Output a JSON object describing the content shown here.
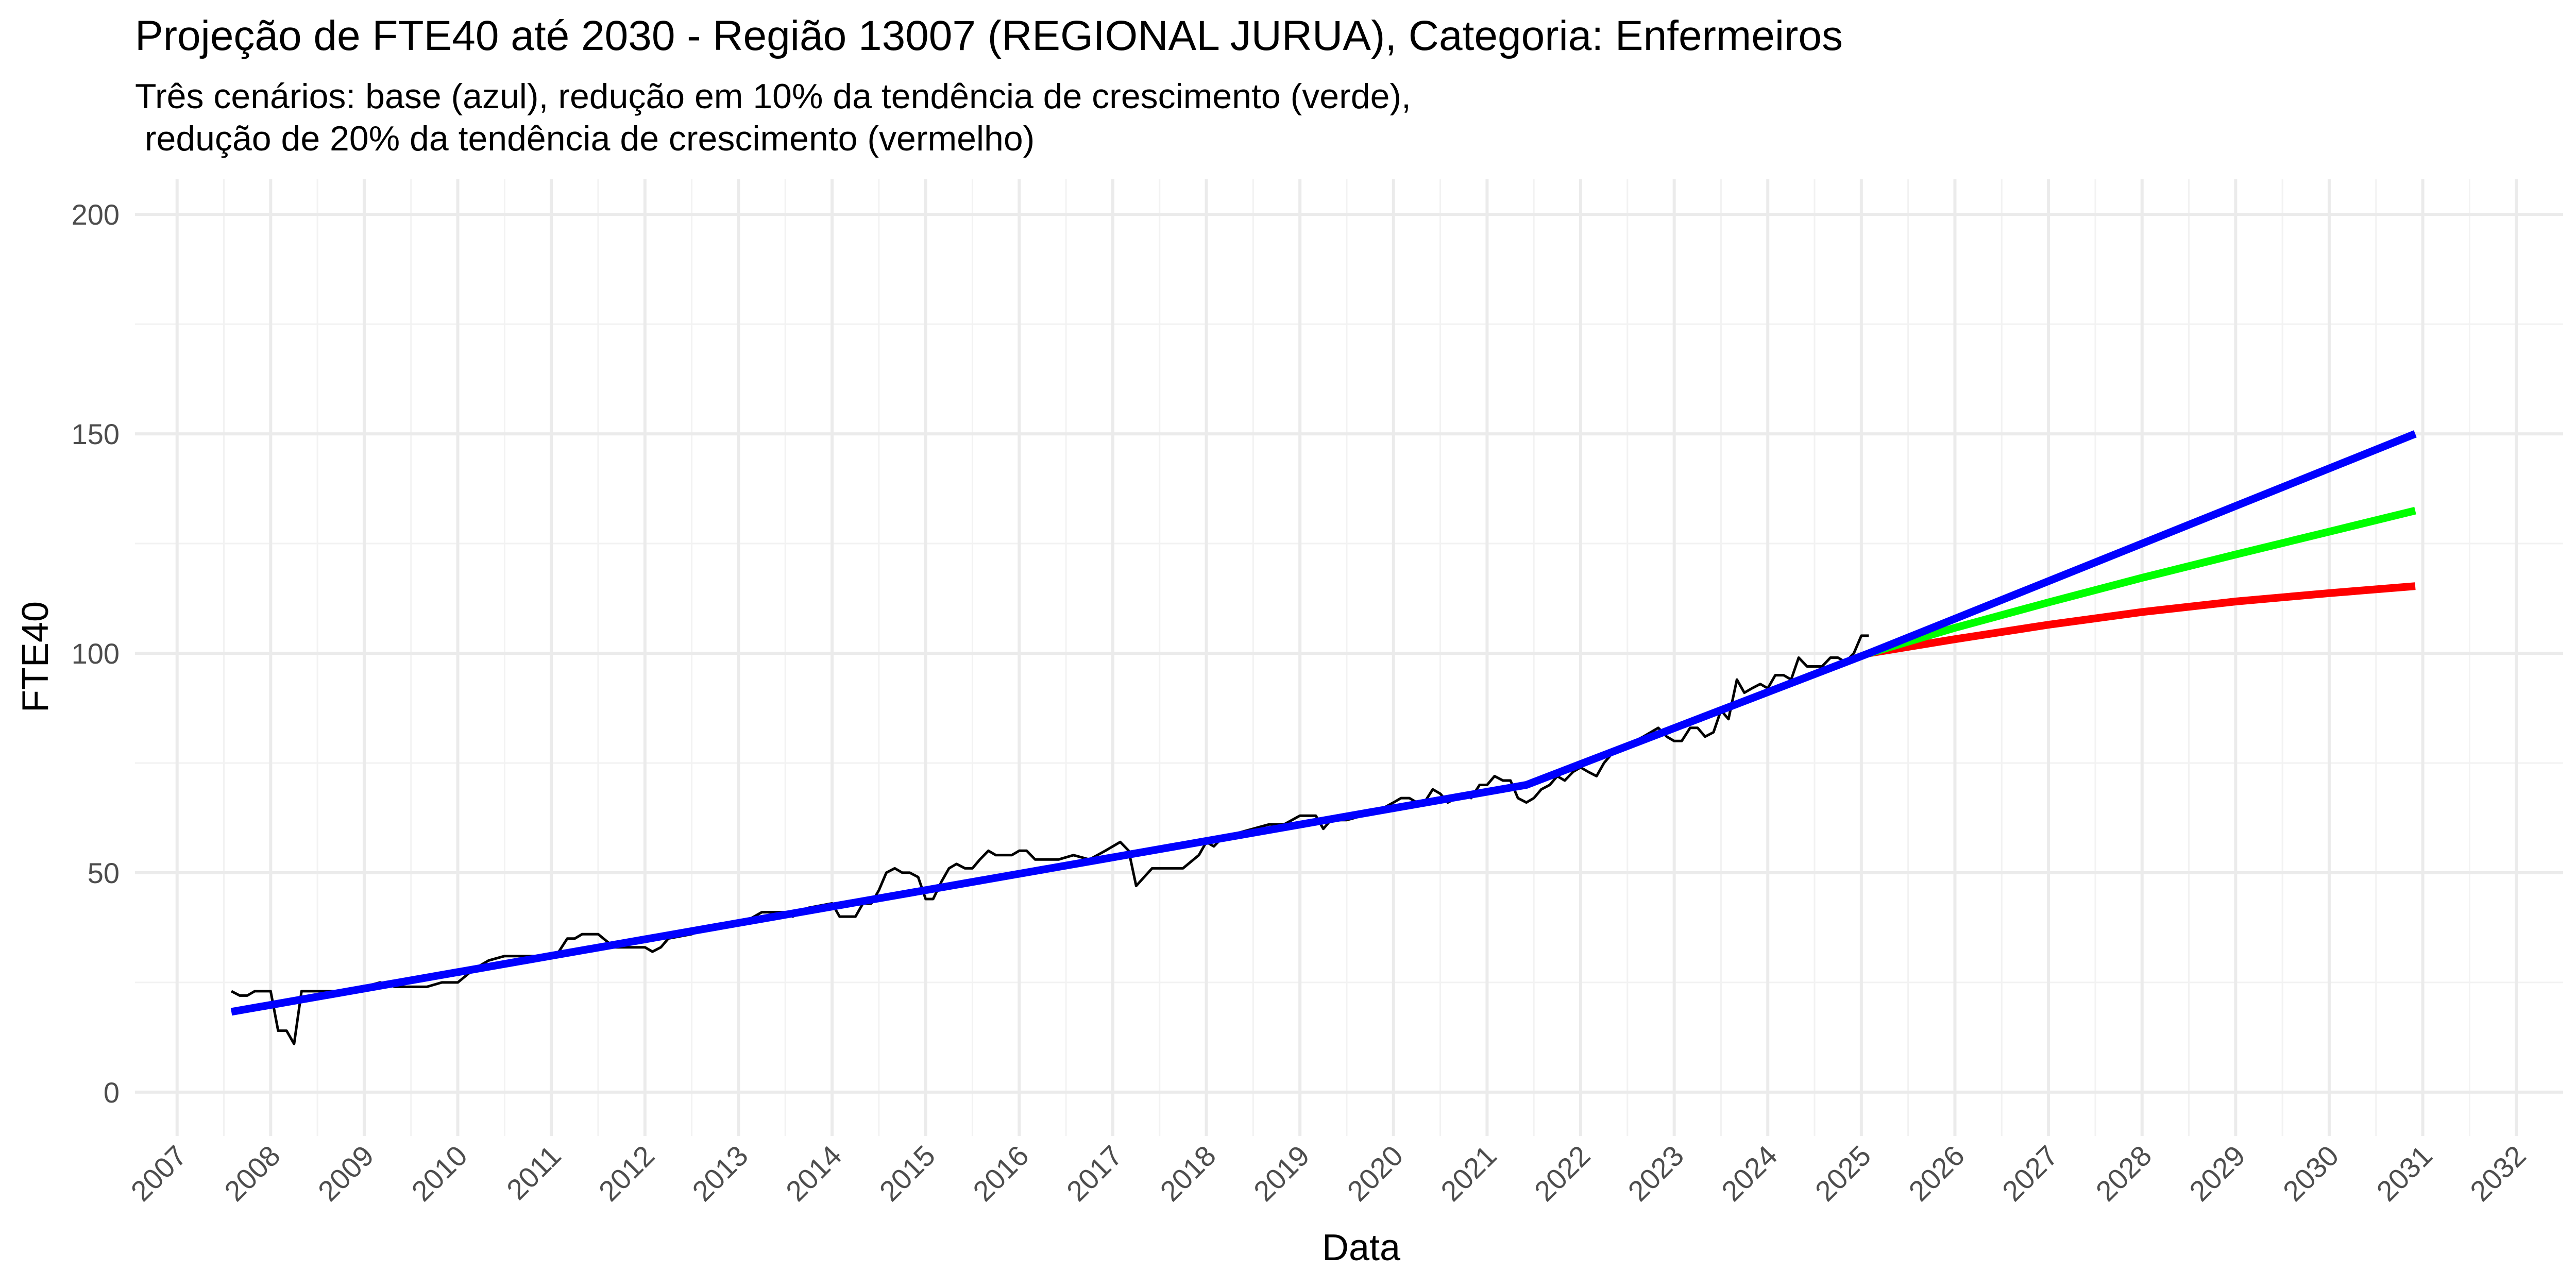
{
  "chart_data": {
    "type": "line",
    "title": "Projeção de FTE40 até 2030 - Região 13007 (REGIONAL JURUA), Categoria: Enfermeiros",
    "subtitle_lines": [
      "Três cenários: base (azul), redução em 10% da tendência de crescimento (verde),",
      " redução de 20% da tendência de crescimento (vermelho)"
    ],
    "xlabel": "Data",
    "ylabel": "FTE40",
    "xlim": [
      2006.55,
      2032.5
    ],
    "ylim": [
      -10,
      208
    ],
    "y_ticks": [
      0,
      50,
      100,
      150,
      200
    ],
    "y_tick_labels": [
      "0",
      "50",
      "100",
      "150",
      "200"
    ],
    "x_ticks": [
      2007,
      2008,
      2009,
      2010,
      2011,
      2012,
      2013,
      2014,
      2015,
      2016,
      2017,
      2018,
      2019,
      2020,
      2021,
      2022,
      2023,
      2024,
      2025,
      2026,
      2027,
      2028,
      2029,
      2030,
      2031,
      2032
    ],
    "x_tick_labels": [
      "2007",
      "2008",
      "2009",
      "2010",
      "2011",
      "2012",
      "2013",
      "2014",
      "2015",
      "2016",
      "2017",
      "2018",
      "2019",
      "2020",
      "2021",
      "2022",
      "2023",
      "2024",
      "2025",
      "2026",
      "2027",
      "2028",
      "2029",
      "2030",
      "2031",
      "2032"
    ],
    "grid": true,
    "series": [
      {
        "key": "observed",
        "color": "#000000",
        "x": [
          2007.58,
          2007.67,
          2007.75,
          2007.83,
          2007.92,
          2008.0,
          2008.08,
          2008.17,
          2008.25,
          2008.33,
          2008.42,
          2008.5,
          2008.58,
          2008.67,
          2008.75,
          2008.83,
          2008.92,
          2009.0,
          2009.17,
          2009.33,
          2009.5,
          2009.67,
          2009.83,
          2010.0,
          2010.17,
          2010.25,
          2010.33,
          2010.5,
          2010.67,
          2010.83,
          2011.0,
          2011.08,
          2011.17,
          2011.25,
          2011.33,
          2011.42,
          2011.5,
          2011.67,
          2011.83,
          2012.0,
          2012.08,
          2012.17,
          2012.25,
          2012.5,
          2012.75,
          2013.0,
          2013.25,
          2013.5,
          2013.58,
          2013.75,
          2014.0,
          2014.08,
          2014.25,
          2014.33,
          2014.42,
          2014.5,
          2014.58,
          2014.67,
          2014.75,
          2014.83,
          2014.92,
          2015.0,
          2015.08,
          2015.17,
          2015.25,
          2015.33,
          2015.42,
          2015.5,
          2015.58,
          2015.67,
          2015.75,
          2015.83,
          2015.92,
          2016.0,
          2016.08,
          2016.17,
          2016.25,
          2016.42,
          2016.58,
          2016.75,
          2016.92,
          2017.0,
          2017.08,
          2017.17,
          2017.25,
          2017.42,
          2017.58,
          2017.75,
          2017.92,
          2018.0,
          2018.08,
          2018.17,
          2018.33,
          2018.5,
          2018.67,
          2018.83,
          2019.0,
          2019.17,
          2019.25,
          2019.33,
          2019.5,
          2019.67,
          2019.83,
          2020.0,
          2020.08,
          2020.17,
          2020.25,
          2020.33,
          2020.42,
          2020.5,
          2020.58,
          2020.67,
          2020.75,
          2020.83,
          2020.92,
          2021.0,
          2021.08,
          2021.17,
          2021.25,
          2021.33,
          2021.42,
          2021.5,
          2021.58,
          2021.67,
          2021.75,
          2021.83,
          2021.92,
          2022.0,
          2022.08,
          2022.17,
          2022.25,
          2022.33,
          2022.42,
          2022.5,
          2022.58,
          2022.67,
          2022.75,
          2022.83,
          2022.92,
          2023.0,
          2023.08,
          2023.17,
          2023.25,
          2023.33,
          2023.42,
          2023.5,
          2023.58,
          2023.67,
          2023.75,
          2023.83,
          2023.92,
          2024.0,
          2024.08,
          2024.17,
          2024.25,
          2024.33,
          2024.42,
          2024.5,
          2024.58,
          2024.67,
          2024.75,
          2024.83,
          2024.92,
          2025.0,
          2025.08
        ],
        "values": [
          23,
          22,
          22,
          23,
          23,
          23,
          14,
          14,
          11,
          23,
          23,
          23,
          23,
          23,
          23,
          23,
          23,
          24,
          25,
          24,
          24,
          24,
          25,
          25,
          28,
          29,
          30,
          31,
          31,
          31,
          31,
          32,
          35,
          35,
          36,
          36,
          36,
          33,
          33,
          33,
          32,
          33,
          35,
          36,
          38,
          38,
          41,
          41,
          40,
          42,
          43,
          40,
          40,
          43,
          43,
          46,
          50,
          51,
          50,
          50,
          49,
          44,
          44,
          48,
          51,
          52,
          51,
          51,
          53,
          55,
          54,
          54,
          54,
          55,
          55,
          53,
          53,
          53,
          54,
          53,
          55,
          56,
          57,
          55,
          47,
          51,
          51,
          51,
          54,
          57,
          56,
          58,
          59,
          60,
          61,
          61,
          63,
          63,
          60,
          62,
          62,
          63,
          64,
          66,
          67,
          67,
          66,
          66,
          69,
          68,
          66,
          67,
          68,
          67,
          70,
          70,
          72,
          71,
          71,
          67,
          66,
          67,
          69,
          70,
          72,
          71,
          73,
          74,
          73,
          72,
          75,
          77,
          78,
          79,
          80,
          81,
          82,
          83,
          81,
          80,
          80,
          83,
          83,
          81,
          82,
          87,
          85,
          94,
          91,
          92,
          93,
          92,
          95,
          95,
          94,
          99,
          97,
          97,
          97,
          99,
          99,
          98,
          100,
          104,
          104
        ]
      },
      {
        "key": "base",
        "color": "#0000ff",
        "x": [
          2007.58,
          2021.42,
          2025.08,
          2030.92
        ],
        "values": [
          18.3,
          70,
          100,
          150
        ]
      },
      {
        "key": "reduction-10",
        "color": "#00ff00",
        "x": [
          2025.08,
          2026,
          2027,
          2028,
          2029,
          2030,
          2030.92
        ],
        "values": [
          100,
          105.8,
          111.6,
          117.2,
          122.5,
          127.7,
          132.5
        ]
      },
      {
        "key": "reduction-20",
        "color": "#ff0000",
        "x": [
          2025.08,
          2026,
          2027,
          2028,
          2029,
          2030,
          2030.92
        ],
        "values": [
          100,
          103.2,
          106.5,
          109.4,
          111.8,
          113.7,
          115.3
        ]
      }
    ]
  }
}
